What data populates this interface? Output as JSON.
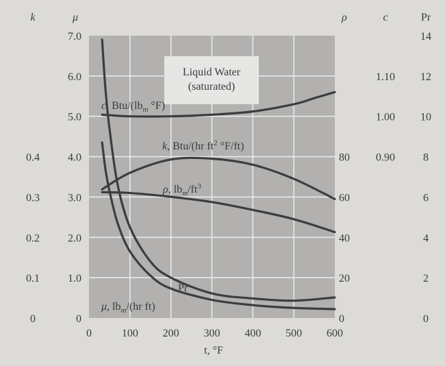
{
  "chart_data": {
    "type": "line",
    "title": "Liquid Water",
    "subtitle": "(saturated)",
    "xlabel": "t, °F",
    "xlim": [
      0,
      600
    ],
    "x_ticks": [
      "0",
      "100",
      "200",
      "300",
      "400",
      "500",
      "600"
    ],
    "grid": true,
    "axes": {
      "k": {
        "symbol": "k",
        "ticks": [
          0,
          0.1,
          0.2,
          0.3,
          0.4
        ],
        "tick_labels": [
          "0",
          "0.1",
          "0.2",
          "0.3",
          "0.4"
        ],
        "plot_scale": 10,
        "plot_offset": 0
      },
      "mu": {
        "symbol": "μ",
        "ticks": [
          0,
          1,
          2,
          3,
          4,
          5,
          6,
          7
        ],
        "tick_labels": [
          "0",
          "1.0",
          "2.0",
          "3.0",
          "4.0",
          "5.0",
          "6.0",
          "7.0"
        ],
        "plot_scale": 1,
        "plot_offset": 0
      },
      "rho": {
        "symbol": "ρ",
        "ticks": [
          0,
          20,
          40,
          60,
          80
        ],
        "tick_labels": [
          "0",
          "20",
          "40",
          "60",
          "80"
        ],
        "plot_scale": 0.05,
        "plot_offset": 0
      },
      "c": {
        "symbol": "c",
        "ticks": [
          0.9,
          1.0,
          1.1
        ],
        "tick_labels": [
          "0.90",
          "1.00",
          "1.10"
        ],
        "plot_scale": 10,
        "plot_offset": -5
      },
      "Pr": {
        "symbol": "Pr",
        "ticks": [
          0,
          2,
          4,
          6,
          8,
          10,
          12,
          14
        ],
        "tick_labels": [
          "0",
          "2",
          "4",
          "6",
          "8",
          "10",
          "12",
          "14"
        ],
        "plot_scale": 0.5,
        "plot_offset": 0
      }
    },
    "series": [
      {
        "name": "c",
        "label": [
          "c",
          ", Btu/(lb",
          "m",
          " °F)"
        ],
        "axis": "c",
        "x": [
          32,
          100,
          200,
          300,
          400,
          500,
          550,
          600
        ],
        "y": [
          1.004,
          1.0,
          1.0,
          1.004,
          1.012,
          1.03,
          1.045,
          1.06
        ]
      },
      {
        "name": "k",
        "label": [
          "k",
          ", Btu/(hr ft",
          "2",
          " °F/ft)"
        ],
        "axis": "k",
        "x": [
          32,
          100,
          200,
          300,
          400,
          500,
          600
        ],
        "y": [
          0.319,
          0.36,
          0.393,
          0.395,
          0.38,
          0.345,
          0.295
        ]
      },
      {
        "name": "rho",
        "label": [
          "ρ",
          ", lb",
          "m",
          "/ft",
          "3"
        ],
        "axis": "rho",
        "x": [
          32,
          100,
          200,
          300,
          400,
          500,
          600
        ],
        "y": [
          62.4,
          62.0,
          60.1,
          57.5,
          53.6,
          49.0,
          42.6
        ]
      },
      {
        "name": "Pr",
        "label": [
          "Pr"
        ],
        "axis": "Pr",
        "x": [
          32,
          40,
          50,
          70,
          100,
          150,
          200,
          300,
          400,
          500,
          600
        ],
        "y": [
          13.8,
          11.4,
          9.4,
          6.6,
          4.5,
          2.8,
          2.0,
          1.22,
          0.97,
          0.86,
          1.02
        ]
      },
      {
        "name": "mu",
        "label": [
          "μ",
          ", lb",
          "m",
          "/(hr ft)"
        ],
        "axis": "mu",
        "x": [
          32,
          40,
          50,
          70,
          100,
          150,
          200,
          300,
          400,
          500,
          600
        ],
        "y": [
          4.35,
          3.7,
          3.15,
          2.35,
          1.65,
          1.05,
          0.73,
          0.45,
          0.32,
          0.25,
          0.22
        ]
      }
    ]
  }
}
